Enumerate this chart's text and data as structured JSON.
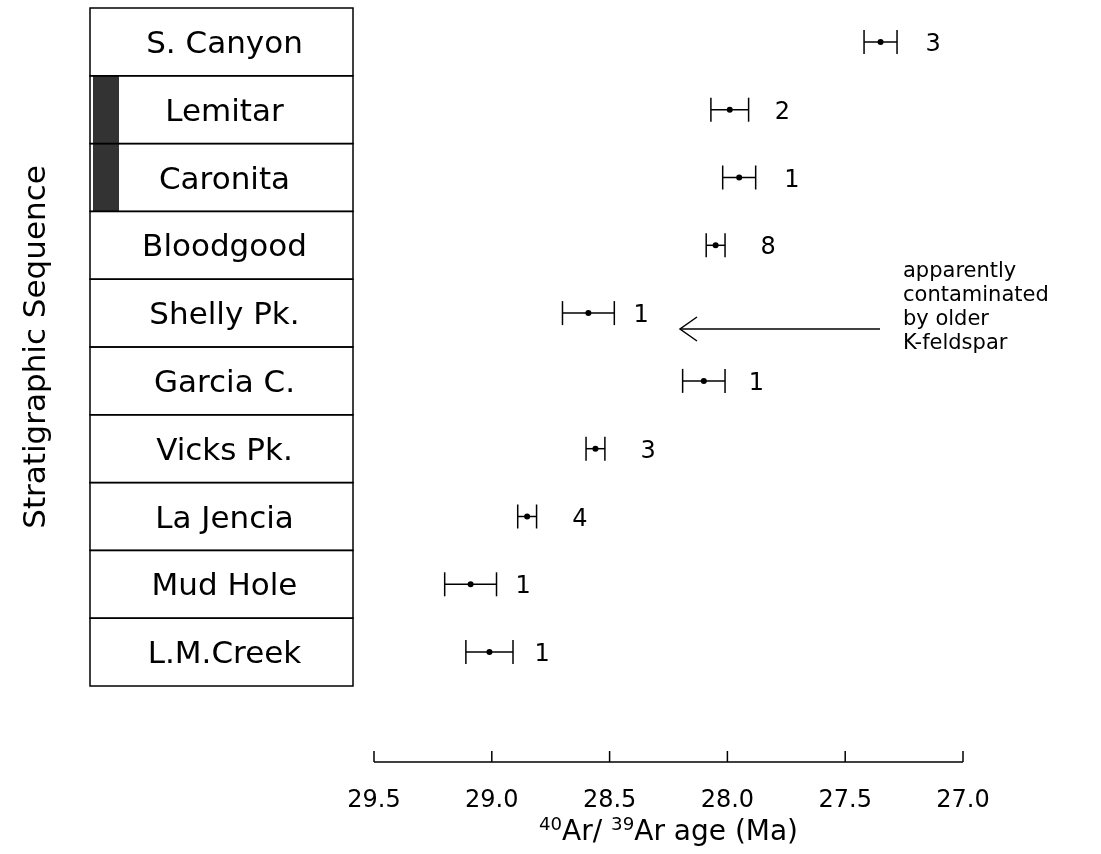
{
  "chart_data": {
    "type": "scatter",
    "orientation": "horizontal",
    "xlabel": "$^{40}$Ar/ $^{39}$Ar age (Ma)",
    "ylabel": "Stratigraphic Sequence",
    "categories": [
      "S. Canyon",
      "Lemitar",
      "Caronita",
      "Bloodgood",
      "Shelly Pk.",
      "Garcia C.",
      "Vicks Pk.",
      "La Jencia",
      "Mud Hole",
      "L.M.Creek"
    ],
    "series": [
      {
        "color": "#000000",
        "values": [
          27.35,
          27.99,
          27.95,
          28.05,
          28.59,
          28.1,
          28.56,
          28.85,
          29.09,
          29.01
        ],
        "errors": [
          0.07,
          0.08,
          0.07,
          0.04,
          0.11,
          0.09,
          0.04,
          0.04,
          0.11,
          0.1
        ]
      }
    ],
    "xlim": [
      29.5,
      27.0
    ],
    "xticks": [
      {
        "value": 29.5,
        "label": "29.5"
      },
      {
        "value": 29.0,
        "label": "29.0"
      },
      {
        "value": 28.5,
        "label": "28.5"
      },
      {
        "value": 28.0,
        "label": "28.0"
      },
      {
        "value": 27.5,
        "label": "27.5"
      },
      {
        "value": 27.0,
        "label": "27.0"
      }
    ],
    "marker": "circle",
    "grid": false,
    "annotations": [
      {
        "text": "3",
        "x": 27.35,
        "y": "S. Canyon"
      },
      {
        "text": "2",
        "x": 27.99,
        "y": "Lemitar"
      },
      {
        "text": "1",
        "x": 27.95,
        "y": "Caronita"
      },
      {
        "text": "8",
        "x": 28.05,
        "y": "Bloodgood"
      },
      {
        "text": "1",
        "x": 28.59,
        "y": "Shelly Pk."
      },
      {
        "text": "1",
        "x": 28.1,
        "y": "Garcia C."
      },
      {
        "text": "3",
        "x": 28.56,
        "y": "Vicks Pk."
      },
      {
        "text": "4",
        "x": 28.85,
        "y": "La Jencia"
      },
      {
        "text": "1",
        "x": 29.09,
        "y": "Mud Hole"
      },
      {
        "text": "1",
        "x": 29.01,
        "y": "L.M.Creek"
      },
      "apparently\ncontaminated\nby older\nK-feldspar"
    ]
  }
}
